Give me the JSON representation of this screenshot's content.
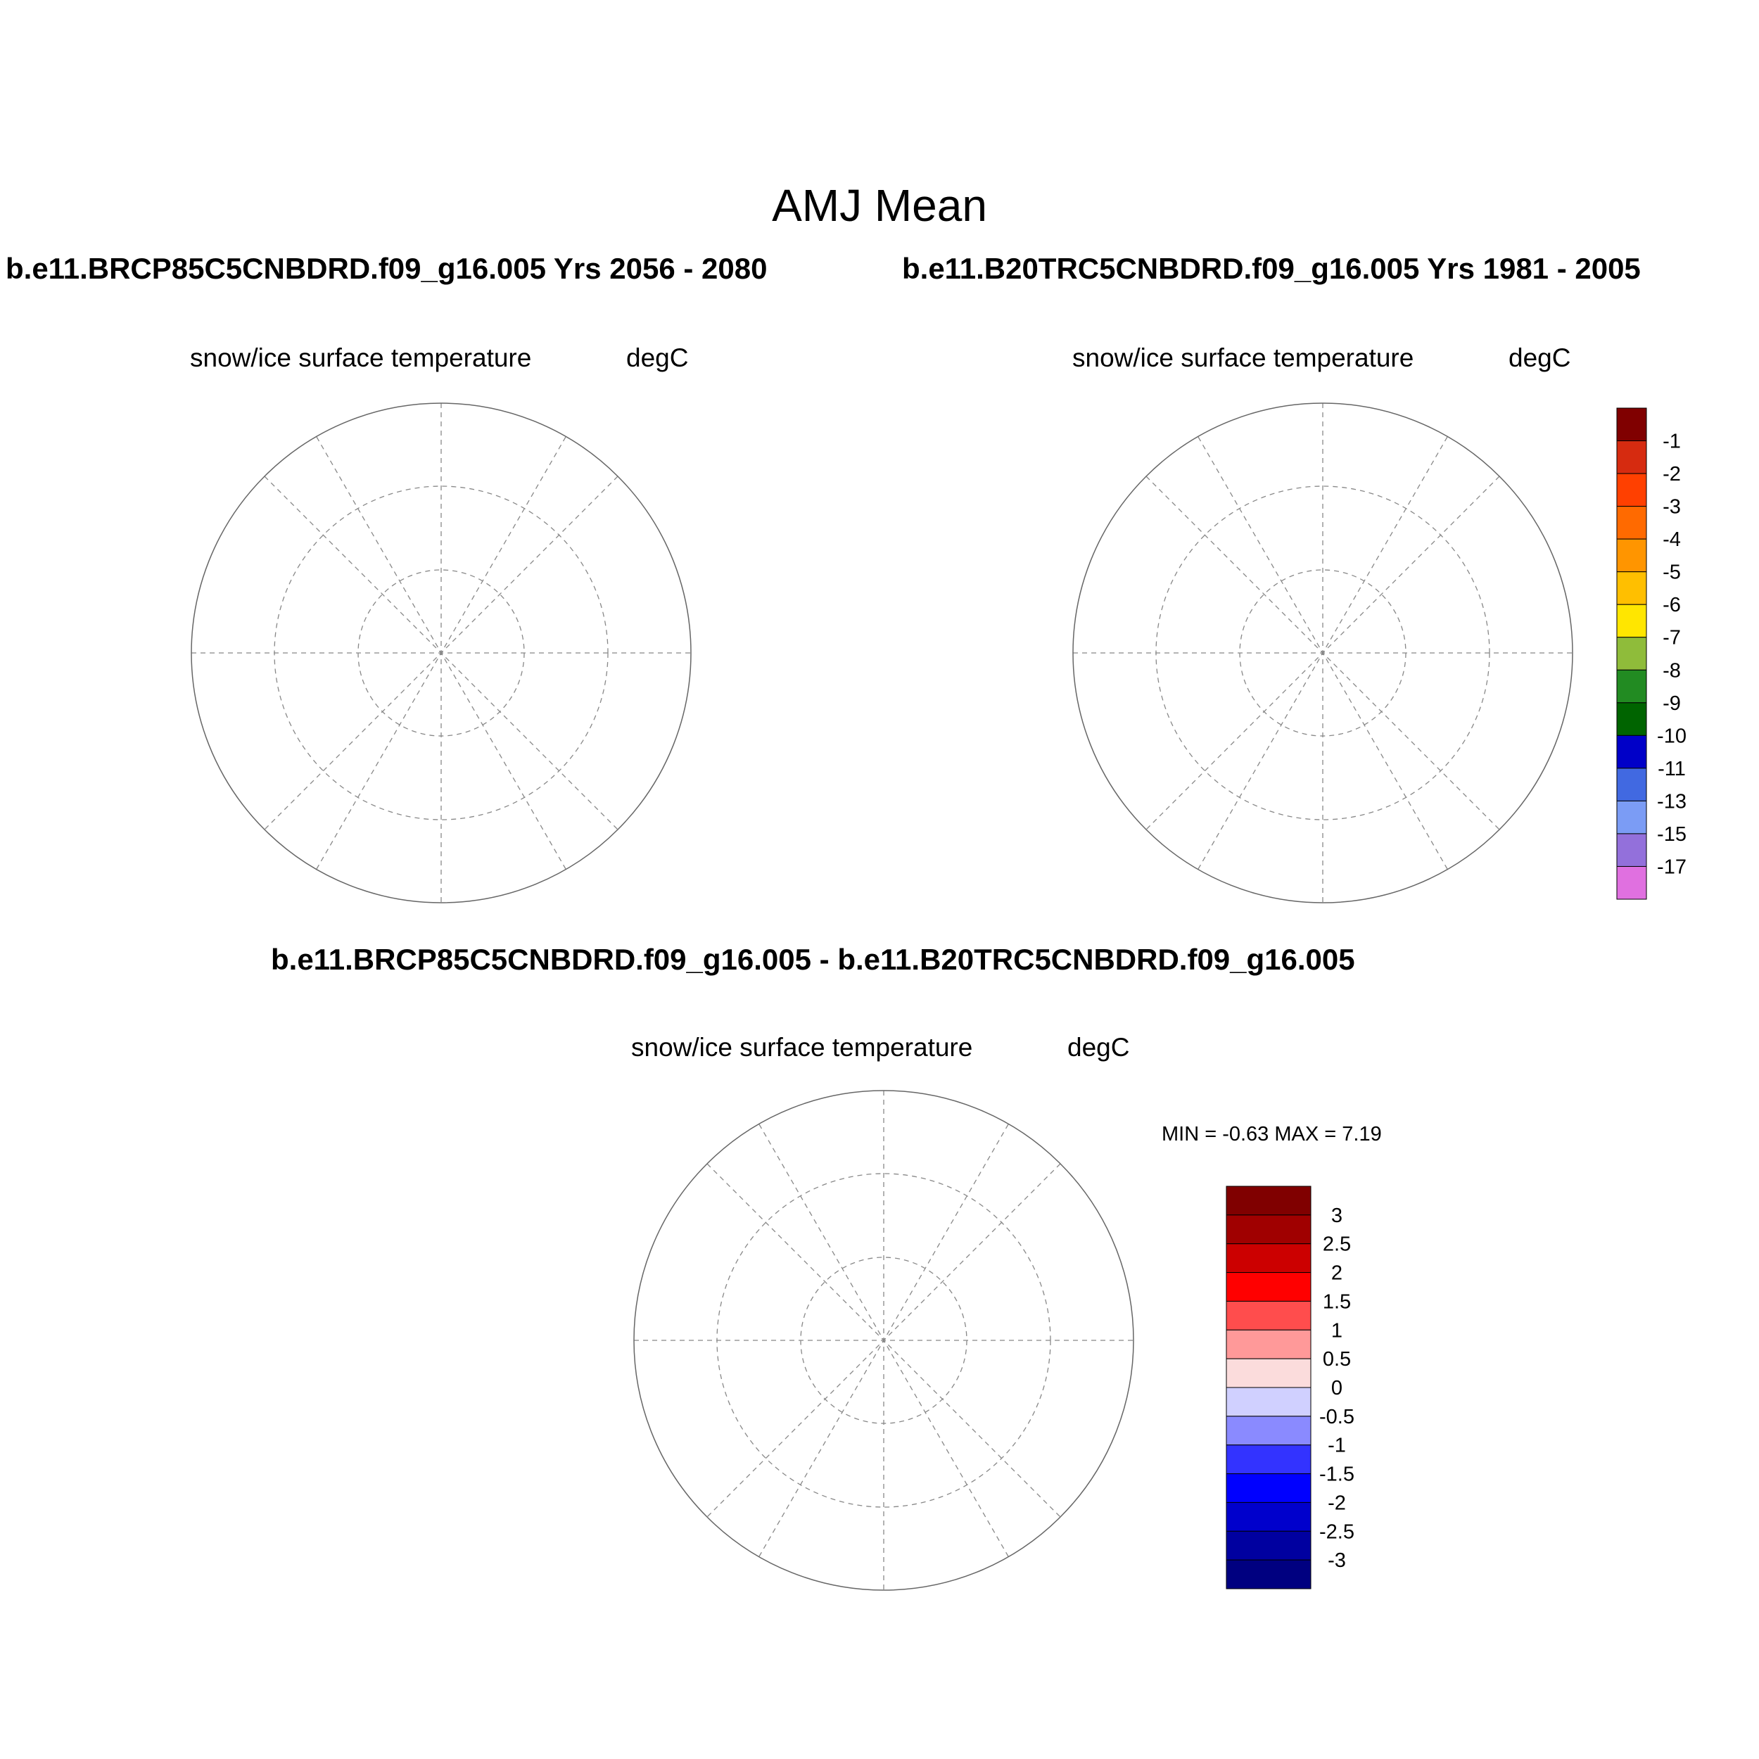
{
  "figure": {
    "title": "AMJ Mean",
    "diff_title": "b.e11.BRCP85C5CNBDRD.f09_g16.005 - b.e11.B20TRC5CNBDRD.f09_g16.005",
    "minmax_text": "MIN =  -0.63 MAX =   7.19"
  },
  "panels": [
    {
      "case_title": "b.e11.BRCP85C5CNBDRD.f09_g16.005  Yrs 2056 - 2080",
      "variable": "snow/ice surface temperature",
      "units": "degC"
    },
    {
      "case_title": "b.e11.B20TRC5CNBDRD.f09_g16.005  Yrs 1981 - 2005",
      "variable": "snow/ice surface temperature",
      "units": "degC"
    },
    {
      "case_title": "",
      "variable": "snow/ice surface temperature",
      "units": "degC"
    }
  ],
  "colors": {
    "land": "#bfbfbf",
    "ocean": "#ffffff"
  },
  "chart_data": {
    "type": "heatmap",
    "projection": "north polar stereographic",
    "colorbar_main": {
      "labels": [
        "-1",
        "-2",
        "-3",
        "-4",
        "-5",
        "-6",
        "-7",
        "-8",
        "-9",
        "-10",
        "-11",
        "-13",
        "-15",
        "-17"
      ],
      "colors": [
        "#800000",
        "#d62b10",
        "#ff4000",
        "#ff6a00",
        "#ff9500",
        "#ffbf00",
        "#ffe600",
        "#8fbc3a",
        "#228b22",
        "#006400",
        "#0000c8",
        "#4169e1",
        "#7b9cf5",
        "#9370db",
        "#e070e0"
      ]
    },
    "colorbar_diff": {
      "labels": [
        "3",
        "2.5",
        "2",
        "1.5",
        "1",
        "0.5",
        "0",
        "-0.5",
        "-1",
        "-1.5",
        "-2",
        "-2.5",
        "-3"
      ],
      "colors": [
        "#800000",
        "#a00000",
        "#cc0000",
        "#ff0000",
        "#ff4d4d",
        "#ff9999",
        "#fbdcdc",
        "#d0d0ff",
        "#8a8aff",
        "#3333ff",
        "#0000ff",
        "#0000cc",
        "#0000a0",
        "#000080"
      ]
    }
  }
}
